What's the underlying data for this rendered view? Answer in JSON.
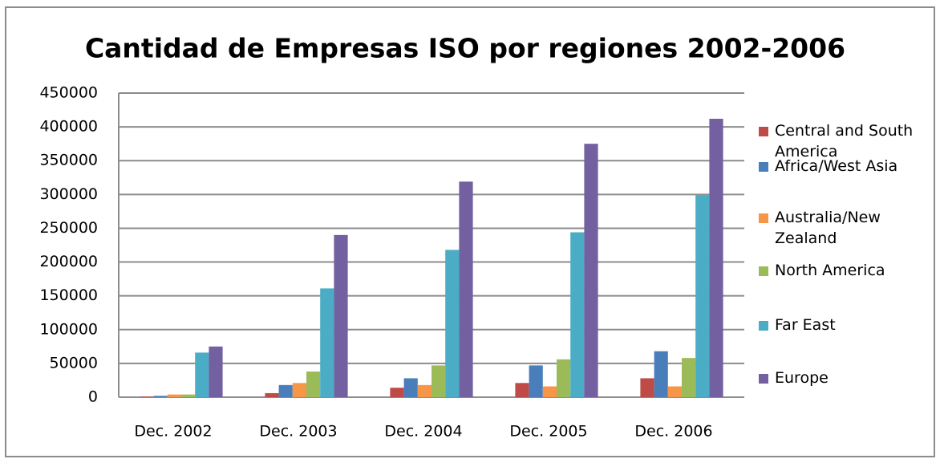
{
  "chart_data": {
    "type": "bar",
    "title": "Cantidad de Empresas ISO por regiones 2002-2006",
    "categories": [
      "Dec. 2002",
      "Dec. 2003",
      "Dec. 2004",
      "Dec. 2005",
      "Dec. 2006"
    ],
    "series": [
      {
        "name": "Central and South America",
        "color": "#be4b48",
        "values": [
          1000,
          6000,
          14000,
          21000,
          28000
        ]
      },
      {
        "name": "Africa/West Asia",
        "color": "#4a7ebb",
        "values": [
          2000,
          18000,
          28000,
          47000,
          68000
        ]
      },
      {
        "name": "Australia/New Zealand",
        "color": "#f79646",
        "values": [
          4000,
          21000,
          18000,
          16000,
          16000
        ]
      },
      {
        "name": "North America",
        "color": "#9bbb59",
        "values": [
          4000,
          38000,
          47000,
          56000,
          58000
        ]
      },
      {
        "name": "Far East",
        "color": "#4bacc6",
        "values": [
          66000,
          161000,
          218000,
          244000,
          299000
        ]
      },
      {
        "name": "Europe",
        "color": "#7360a0",
        "values": [
          75000,
          240000,
          319000,
          375000,
          412000
        ]
      }
    ],
    "ylim": [
      0,
      450000
    ],
    "yticks": [
      0,
      50000,
      100000,
      150000,
      200000,
      250000,
      300000,
      350000,
      400000,
      450000
    ],
    "grid": true
  }
}
